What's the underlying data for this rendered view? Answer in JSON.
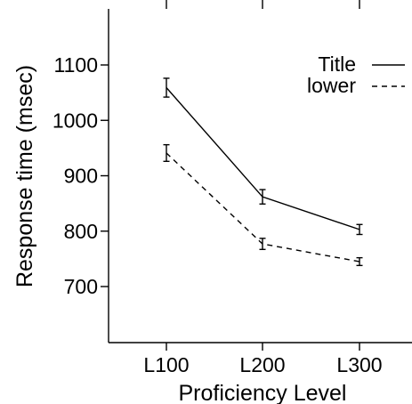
{
  "chart_data": {
    "type": "line",
    "title": "",
    "xlabel": "Proficiency Level",
    "ylabel": "Response time (msec)",
    "categories": [
      "L100",
      "L200",
      "L300"
    ],
    "ylim": [
      600,
      1200
    ],
    "yticks": [
      700,
      800,
      900,
      1000,
      1100
    ],
    "grid": false,
    "legend": "top-right",
    "series": [
      {
        "name": "Title",
        "line_style": "solid",
        "color": "#000000",
        "values": [
          1059,
          862,
          803
        ],
        "error": [
          17,
          13,
          9
        ]
      },
      {
        "name": "lower",
        "line_style": "dashed",
        "color": "#000000",
        "values": [
          941,
          777,
          745
        ],
        "error": [
          15,
          10,
          7
        ]
      }
    ]
  }
}
